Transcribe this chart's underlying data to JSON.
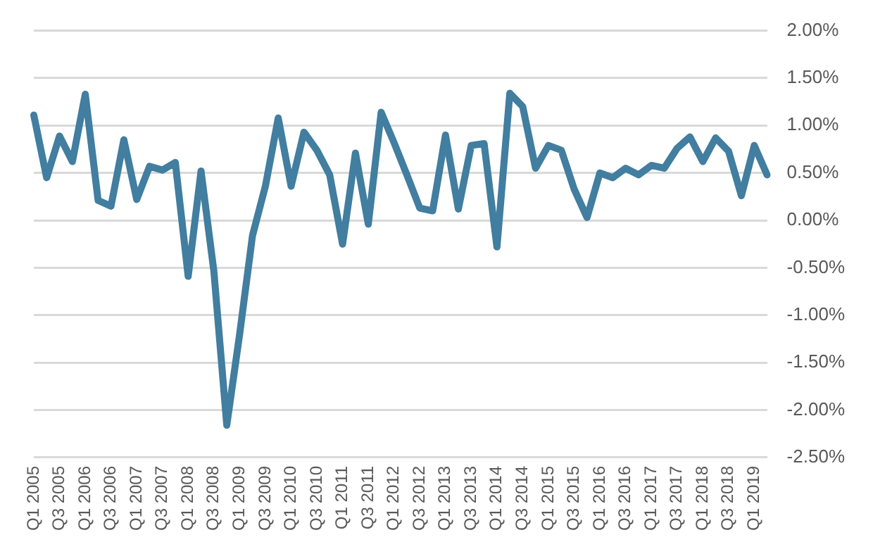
{
  "chart_data": {
    "type": "line",
    "categories": [
      "Q1 2005",
      null,
      "Q3 2005",
      null,
      "Q1 2006",
      null,
      "Q3 2006",
      null,
      "Q1 2007",
      null,
      "Q3 2007",
      null,
      "Q1 2008",
      null,
      "Q3 2008",
      null,
      "Q1 2009",
      null,
      "Q3 2009",
      null,
      "Q1 2010",
      null,
      "Q3 2010",
      null,
      "Q1 2011",
      null,
      "Q3 2011",
      null,
      "Q1 2012",
      null,
      "Q3 2012",
      null,
      "Q1 2013",
      null,
      "Q3 2013",
      null,
      "Q1 2014",
      null,
      "Q3 2014",
      null,
      "Q1 2015",
      null,
      "Q3 2015",
      null,
      "Q1 2016",
      null,
      "Q3 2016",
      null,
      "Q1 2017",
      null,
      "Q3 2017",
      null,
      "Q1 2018",
      null,
      "Q3 2018",
      null,
      "Q1 2019",
      null
    ],
    "series": [
      {
        "color": "#417ea0",
        "values": [
          1.11,
          0.45,
          0.89,
          0.62,
          1.33,
          0.21,
          0.15,
          0.85,
          0.22,
          0.57,
          0.53,
          0.61,
          -0.59,
          0.52,
          -0.54,
          -2.16,
          -1.2,
          -0.16,
          0.36,
          1.08,
          0.36,
          0.93,
          0.74,
          0.48,
          -0.25,
          0.71,
          -0.04,
          1.14,
          0.82,
          0.48,
          0.13,
          0.1,
          0.9,
          0.12,
          0.79,
          0.81,
          -0.28,
          1.34,
          1.2,
          0.55,
          0.79,
          0.74,
          0.33,
          0.03,
          0.5,
          0.45,
          0.55,
          0.48,
          0.58,
          0.55,
          0.76,
          0.88,
          0.62,
          0.87,
          0.73,
          0.26,
          0.79,
          0.48
        ]
      }
    ],
    "ylim": [
      -2.5,
      2
    ],
    "yticks": [
      {
        "value": 2,
        "label": "2.00%"
      },
      {
        "value": 1.5,
        "label": "1.50%"
      },
      {
        "value": 1,
        "label": "1.00%"
      },
      {
        "value": 0.5,
        "label": "0.50%"
      },
      {
        "value": 0,
        "label": "0.00%"
      },
      {
        "value": -0.5,
        "label": "-0.50%"
      },
      {
        "value": -1,
        "label": "-1.00%"
      },
      {
        "value": -1.5,
        "label": "-1.50%"
      },
      {
        "value": -2,
        "label": "-2.00%"
      },
      {
        "value": -2.5,
        "label": "-2.50%"
      }
    ],
    "grid": "y",
    "marker": "none",
    "line_style": "solid",
    "legend": false
  }
}
